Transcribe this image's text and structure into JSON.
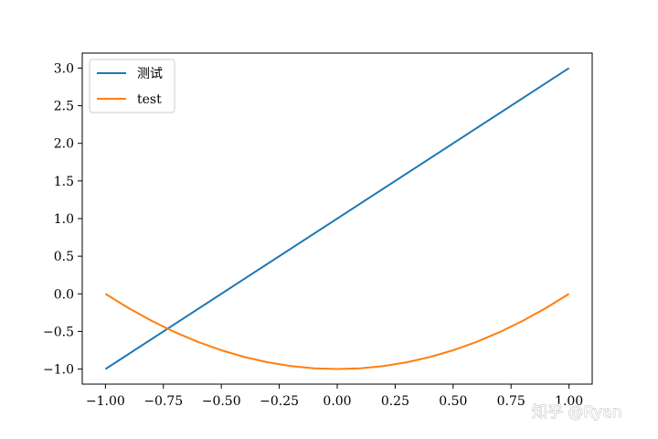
{
  "chart_data": {
    "type": "line",
    "title": "",
    "xlabel": "",
    "ylabel": "",
    "xlim": [
      -1.1,
      1.1
    ],
    "ylim": [
      -1.2,
      3.2
    ],
    "xticks": [
      -1.0,
      -0.75,
      -0.5,
      -0.25,
      0.0,
      0.25,
      0.5,
      0.75,
      1.0
    ],
    "xtick_labels": [
      "−1.00",
      "−0.75",
      "−0.50",
      "−0.25",
      "0.00",
      "0.25",
      "0.50",
      "0.75",
      "1.00"
    ],
    "yticks": [
      -1.0,
      -0.5,
      0.0,
      0.5,
      1.0,
      1.5,
      2.0,
      2.5,
      3.0
    ],
    "ytick_labels": [
      "−1.0",
      "−0.5",
      "0.0",
      "0.5",
      "1.0",
      "1.5",
      "2.0",
      "2.5",
      "3.0"
    ],
    "grid": false,
    "legend_position": "top-left",
    "series": [
      {
        "name": "测试",
        "color": "#1f77b4",
        "x": [
          -1.0,
          1.0
        ],
        "y": [
          -1.0,
          3.0
        ]
      },
      {
        "name": "test",
        "color": "#ff7f0e",
        "x": [
          -1.0,
          -0.9,
          -0.8,
          -0.7,
          -0.6,
          -0.5,
          -0.4,
          -0.3,
          -0.2,
          -0.1,
          0.0,
          0.1,
          0.2,
          0.3,
          0.4,
          0.5,
          0.6,
          0.7,
          0.8,
          0.9,
          1.0
        ],
        "y": [
          0.0,
          -0.19,
          -0.36,
          -0.51,
          -0.64,
          -0.75,
          -0.84,
          -0.91,
          -0.96,
          -0.99,
          -1.0,
          -0.99,
          -0.96,
          -0.91,
          -0.84,
          -0.75,
          -0.64,
          -0.51,
          -0.36,
          -0.19,
          0.0
        ]
      }
    ]
  },
  "watermark": "知乎 @Ryan"
}
